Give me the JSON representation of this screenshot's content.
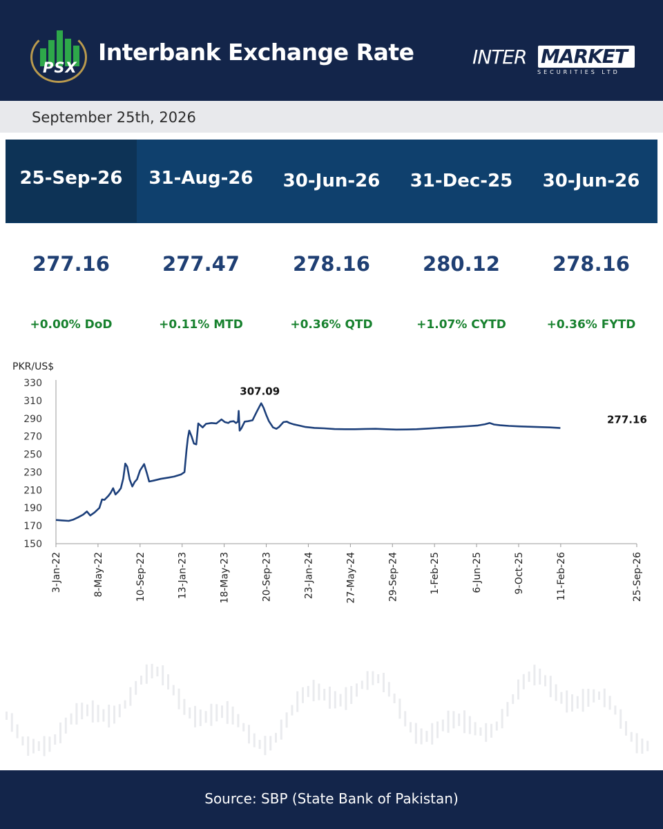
{
  "header": {
    "logo_text": "PSX",
    "title": "Interbank Exchange Rate",
    "brand_part1": "INTER",
    "brand_part2": "MARKET",
    "brand_sub": "SECURITIES LTD"
  },
  "date": "September 25th, 2026",
  "columns": [
    {
      "date": "25-Sep-26",
      "value": "277.16",
      "change": "+0.00% DoD"
    },
    {
      "date": "31-Aug-26",
      "value": "277.47",
      "change": "+0.11% MTD"
    },
    {
      "date": "30-Jun-26",
      "value": "278.16",
      "change": "+0.36% QTD"
    },
    {
      "date": "31-Dec-25",
      "value": "280.12",
      "change": "+1.07% CYTD"
    },
    {
      "date": "30-Jun-26",
      "value": "278.16",
      "change": "+0.36% FYTD"
    }
  ],
  "colors": {
    "navy": "#13254a",
    "header_blue": "#0f406d",
    "value_blue": "#1f3f73",
    "positive_green": "#17812e",
    "line": "#1c3f7a"
  },
  "chart_data": {
    "type": "line",
    "title": "",
    "ylabel": "PKR/US$",
    "xlabel": "",
    "ylim": [
      150,
      330
    ],
    "yticks": [
      150,
      170,
      190,
      210,
      230,
      250,
      270,
      290,
      310,
      330
    ],
    "xlim": [
      "3-Jan-22",
      "25-Sep-26"
    ],
    "xticks": [
      "3-Jan-22",
      "8-May-22",
      "10-Sep-22",
      "13-Jan-23",
      "18-May-23",
      "20-Sep-23",
      "23-Jan-24",
      "27-May-24",
      "29-Sep-24",
      "1-Feb-25",
      "6-Jun-25",
      "9-Oct-25",
      "11-Feb-26",
      "25-Sep-26"
    ],
    "grid": false,
    "legend": "none",
    "annotations": [
      {
        "date": "2023-09-05",
        "value": 307.09,
        "label": "307.09"
      },
      {
        "date": "2026-09-25",
        "value": 277.16,
        "label": "277.16"
      }
    ],
    "series": [
      {
        "points": [
          [
            "2022-01-03",
            176.5
          ],
          [
            "2022-01-20",
            176.0
          ],
          [
            "2022-02-10",
            175.5
          ],
          [
            "2022-02-24",
            177.0
          ],
          [
            "2022-03-10",
            179.5
          ],
          [
            "2022-03-25",
            182.5
          ],
          [
            "2022-04-05",
            186.0
          ],
          [
            "2022-04-15",
            181.5
          ],
          [
            "2022-04-28",
            185.0
          ],
          [
            "2022-05-12",
            190.0
          ],
          [
            "2022-05-20",
            199.5
          ],
          [
            "2022-05-27",
            199.0
          ],
          [
            "2022-06-08",
            203.5
          ],
          [
            "2022-06-15",
            207.0
          ],
          [
            "2022-06-22",
            212.0
          ],
          [
            "2022-06-29",
            205.0
          ],
          [
            "2022-07-08",
            208.5
          ],
          [
            "2022-07-15",
            212.0
          ],
          [
            "2022-07-22",
            223.0
          ],
          [
            "2022-07-28",
            239.5
          ],
          [
            "2022-08-03",
            236.0
          ],
          [
            "2022-08-10",
            222.0
          ],
          [
            "2022-08-18",
            214.0
          ],
          [
            "2022-08-25",
            219.0
          ],
          [
            "2022-09-01",
            222.0
          ],
          [
            "2022-09-10",
            232.0
          ],
          [
            "2022-09-22",
            239.0
          ],
          [
            "2022-09-30",
            229.0
          ],
          [
            "2022-10-07",
            219.5
          ],
          [
            "2022-10-20",
            220.5
          ],
          [
            "2022-11-10",
            222.5
          ],
          [
            "2022-12-05",
            224.0
          ],
          [
            "2022-12-20",
            225.0
          ],
          [
            "2023-01-10",
            227.5
          ],
          [
            "2023-01-20",
            230.0
          ],
          [
            "2023-01-26",
            255.0
          ],
          [
            "2023-01-30",
            268.0
          ],
          [
            "2023-02-03",
            276.5
          ],
          [
            "2023-02-10",
            270.0
          ],
          [
            "2023-02-17",
            262.0
          ],
          [
            "2023-02-24",
            261.0
          ],
          [
            "2023-03-02",
            284.5
          ],
          [
            "2023-03-15",
            280.0
          ],
          [
            "2023-03-25",
            284.0
          ],
          [
            "2023-04-10",
            285.0
          ],
          [
            "2023-04-25",
            284.5
          ],
          [
            "2023-05-10",
            289.0
          ],
          [
            "2023-05-20",
            286.0
          ],
          [
            "2023-05-30",
            285.0
          ],
          [
            "2023-06-05",
            286.5
          ],
          [
            "2023-06-15",
            287.0
          ],
          [
            "2023-06-22",
            285.0
          ],
          [
            "2023-06-28",
            286.5
          ],
          [
            "2023-06-30",
            298.5
          ],
          [
            "2023-07-03",
            276.5
          ],
          [
            "2023-07-08",
            279.0
          ],
          [
            "2023-07-18",
            286.5
          ],
          [
            "2023-07-28",
            287.0
          ],
          [
            "2023-08-10",
            288.0
          ],
          [
            "2023-08-22",
            297.0
          ],
          [
            "2023-09-05",
            307.09
          ],
          [
            "2023-09-12",
            302.0
          ],
          [
            "2023-09-20",
            294.0
          ],
          [
            "2023-09-28",
            287.0
          ],
          [
            "2023-10-10",
            280.0
          ],
          [
            "2023-10-20",
            278.5
          ],
          [
            "2023-10-28",
            280.5
          ],
          [
            "2023-11-10",
            286.0
          ],
          [
            "2023-11-20",
            286.5
          ],
          [
            "2023-11-28",
            285.0
          ],
          [
            "2023-12-10",
            283.5
          ],
          [
            "2023-12-28",
            282.0
          ],
          [
            "2024-01-15",
            280.5
          ],
          [
            "2024-02-10",
            279.5
          ],
          [
            "2024-03-10",
            279.0
          ],
          [
            "2024-04-10",
            278.2
          ],
          [
            "2024-05-10",
            278.0
          ],
          [
            "2024-06-10",
            278.0
          ],
          [
            "2024-07-10",
            278.3
          ],
          [
            "2024-08-10",
            278.5
          ],
          [
            "2024-09-10",
            278.0
          ],
          [
            "2024-10-10",
            277.6
          ],
          [
            "2024-11-10",
            277.7
          ],
          [
            "2024-12-10",
            278.0
          ],
          [
            "2025-01-10",
            278.7
          ],
          [
            "2025-02-10",
            279.4
          ],
          [
            "2025-03-10",
            280.0
          ],
          [
            "2025-04-10",
            280.6
          ],
          [
            "2025-05-10",
            281.3
          ],
          [
            "2025-06-10",
            282.2
          ],
          [
            "2025-07-01",
            283.6
          ],
          [
            "2025-07-15",
            285.0
          ],
          [
            "2025-07-28",
            283.3
          ],
          [
            "2025-08-15",
            282.4
          ],
          [
            "2025-09-10",
            281.7
          ],
          [
            "2025-10-10",
            281.2
          ],
          [
            "2025-11-10",
            280.8
          ],
          [
            "2025-12-10",
            280.4
          ],
          [
            "2026-01-10",
            280.0
          ],
          [
            "2026-02-10",
            279.3
          ]
        ]
      }
    ]
  },
  "footer": {
    "source": "Source: SBP (State Bank of Pakistan)"
  }
}
